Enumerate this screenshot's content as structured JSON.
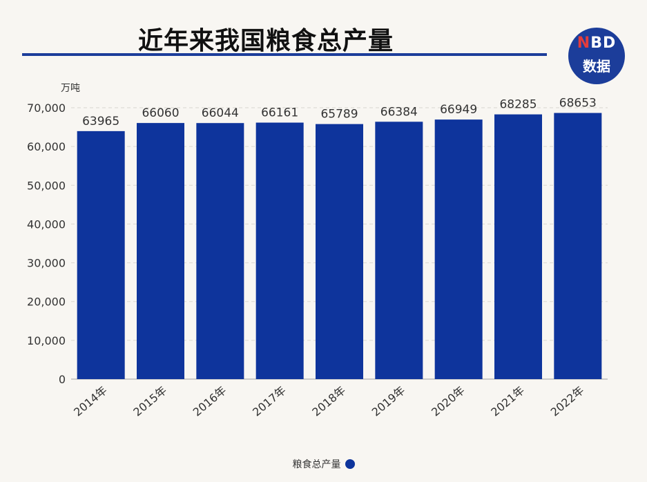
{
  "title": "近年来我国粮食总产量",
  "logo": {
    "line1_n": "N",
    "line1_rest": "BD",
    "line2": "数据"
  },
  "colors": {
    "bar": "#0e349c",
    "accent": "#1c3d9a",
    "logo_n": "#e33c3c"
  },
  "chart_data": {
    "type": "bar",
    "title": "近年来我国粮食总产量",
    "ylabel": "万吨",
    "xlabel": "",
    "ylim": [
      0,
      70000
    ],
    "yticks": [
      0,
      10000,
      20000,
      30000,
      40000,
      50000,
      60000,
      70000
    ],
    "ytick_labels": [
      "0",
      "10,000",
      "20,000",
      "30,000",
      "40,000",
      "50,000",
      "60,000",
      "70,000"
    ],
    "categories": [
      "2014年",
      "2015年",
      "2016年",
      "2017年",
      "2018年",
      "2019年",
      "2020年",
      "2021年",
      "2022年"
    ],
    "series": [
      {
        "name": "粮食总产量",
        "values": [
          63965,
          66060,
          66044,
          66161,
          65789,
          66384,
          66949,
          68285,
          68653
        ]
      }
    ],
    "grid": true,
    "legend": "bottom-center"
  }
}
